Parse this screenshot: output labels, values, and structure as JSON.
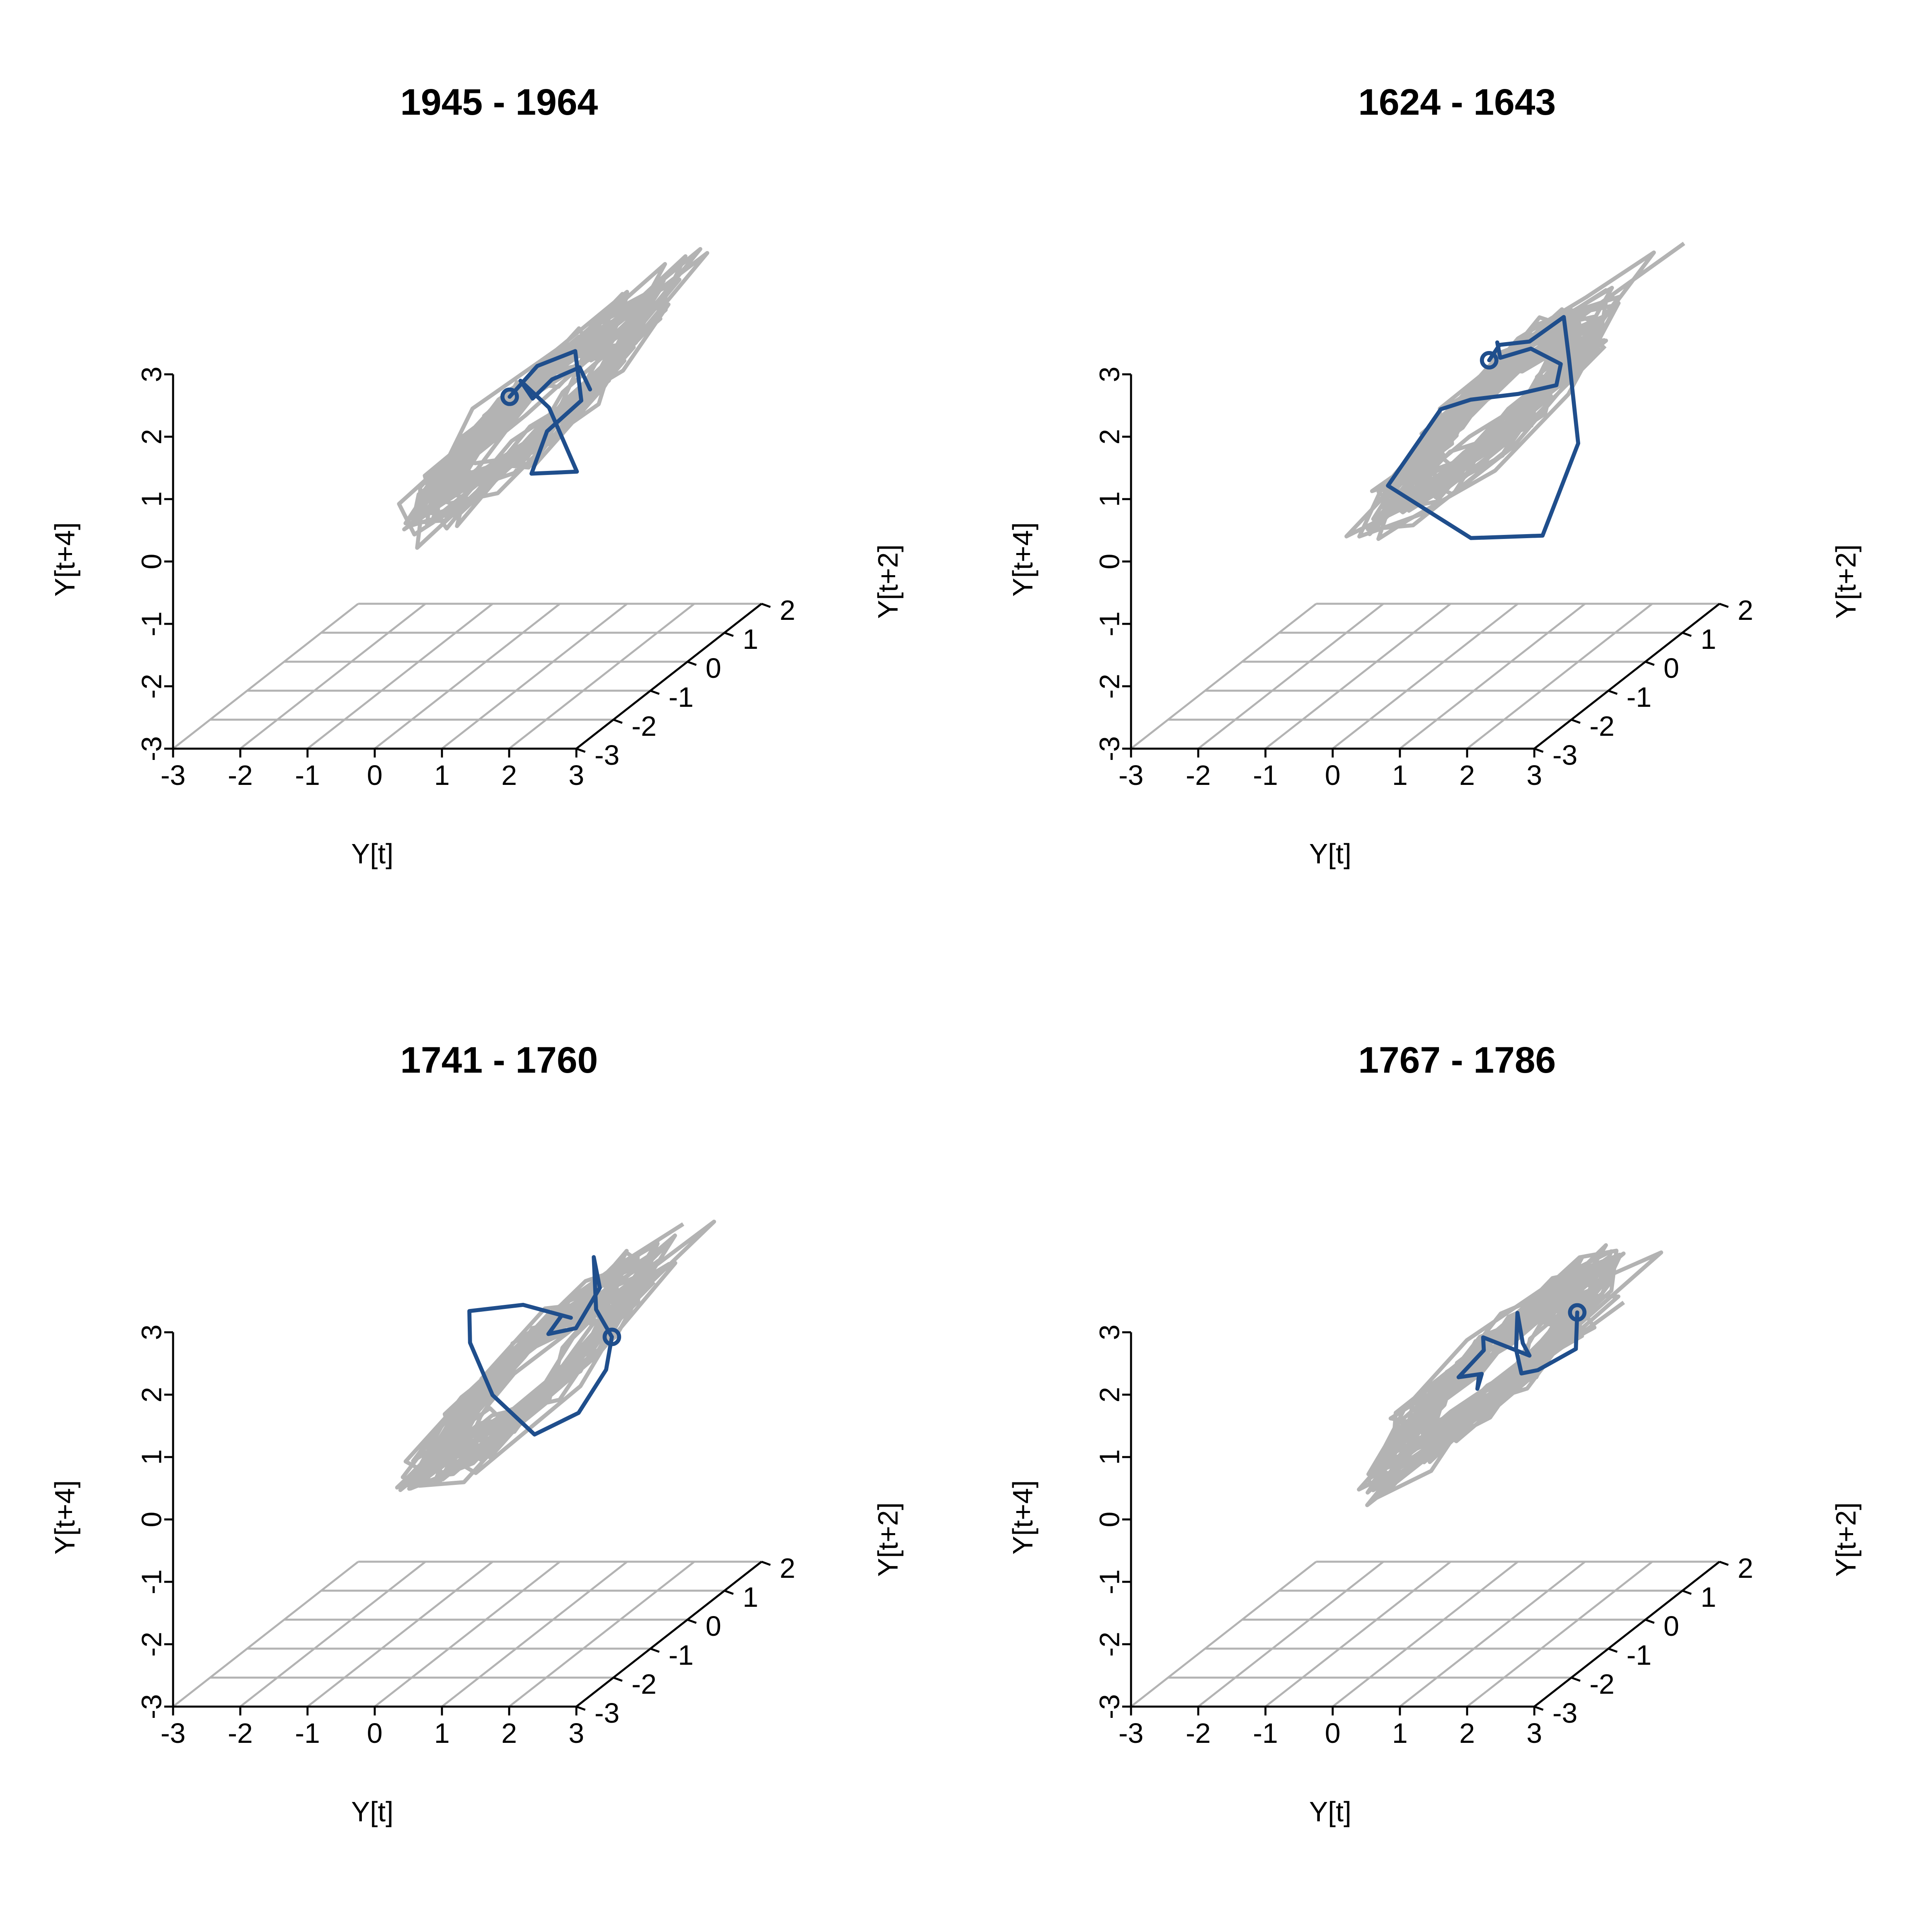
{
  "chart_data": [
    {
      "type": "3d-line",
      "title": "1945 - 1964",
      "xlabel": "Y[t]",
      "ylabel": "Y[t+2]",
      "zlabel": "Y[t+4]",
      "xlim": [
        -3,
        3
      ],
      "ylim": [
        -3,
        2
      ],
      "zlim": [
        -3,
        3
      ],
      "xticks": [
        -3,
        -2,
        -1,
        0,
        1,
        2,
        3
      ],
      "yticks": [
        -3,
        -2,
        -1,
        0,
        1,
        2
      ],
      "zticks": [
        -3,
        -2,
        -1,
        0,
        1,
        2,
        3
      ],
      "background_trajectory_color": "#b3b3b3",
      "highlight_color": "#1f4e8c",
      "highlight": [
        [
          0.3,
          0.1,
          1.2
        ],
        [
          0.6,
          0.3,
          1.6
        ],
        [
          1.0,
          0.6,
          1.7
        ],
        [
          1.2,
          0.4,
          1.0
        ],
        [
          0.8,
          0.2,
          0.6
        ],
        [
          0.9,
          -0.4,
          0.2
        ],
        [
          1.3,
          0.1,
          0.0
        ],
        [
          0.5,
          0.8,
          0.7
        ],
        [
          -0.2,
          1.3,
          0.9
        ],
        [
          0.2,
          0.9,
          0.8
        ],
        [
          0.6,
          0.7,
          1.2
        ],
        [
          0.9,
          0.9,
          1.3
        ],
        [
          1.0,
          1.0,
          0.9
        ]
      ]
    },
    {
      "type": "3d-line",
      "title": "1624 - 1643",
      "xlabel": "Y[t]",
      "ylabel": "Y[t+2]",
      "zlabel": "Y[t+4]",
      "xlim": [
        -3,
        3
      ],
      "ylim": [
        -3,
        2
      ],
      "zlim": [
        -3,
        3
      ],
      "xticks": [
        -3,
        -2,
        -1,
        0,
        1,
        2,
        3
      ],
      "yticks": [
        -3,
        -2,
        -1,
        0,
        1,
        2
      ],
      "zticks": [
        -3,
        -2,
        -1,
        0,
        1,
        2,
        3
      ],
      "background_trajectory_color": "#b3b3b3",
      "highlight_color": "#1f4e8c",
      "highlight": [
        [
          0.4,
          0.5,
          1.6
        ],
        [
          0.5,
          0.6,
          1.8
        ],
        [
          1.0,
          0.5,
          1.9
        ],
        [
          1.4,
          0.7,
          2.2
        ],
        [
          1.7,
          0.3,
          1.7
        ],
        [
          2.0,
          0.0,
          0.5
        ],
        [
          1.8,
          -0.6,
          -0.7
        ],
        [
          0.9,
          -0.9,
          -0.6
        ],
        [
          -0.5,
          -0.6,
          0.1
        ],
        [
          -0.1,
          0.1,
          1.0
        ],
        [
          0.4,
          0.0,
          1.2
        ],
        [
          1.0,
          0.2,
          1.2
        ],
        [
          1.4,
          0.5,
          1.2
        ],
        [
          1.3,
          0.8,
          1.4
        ],
        [
          0.8,
          0.9,
          1.6
        ],
        [
          0.4,
          0.8,
          1.5
        ],
        [
          0.3,
          0.9,
          1.7
        ]
      ]
    },
    {
      "type": "3d-line",
      "title": "1741 - 1760",
      "xlabel": "Y[t]",
      "ylabel": "Y[t+2]",
      "zlabel": "Y[t+4]",
      "xlim": [
        -3,
        3
      ],
      "ylim": [
        -3,
        2
      ],
      "zlim": [
        -3,
        3
      ],
      "xticks": [
        -3,
        -2,
        -1,
        0,
        1,
        2,
        3
      ],
      "yticks": [
        -3,
        -2,
        -1,
        0,
        1,
        2
      ],
      "zticks": [
        -3,
        -2,
        -1,
        0,
        1,
        2,
        3
      ],
      "background_trajectory_color": "#b3b3b3",
      "highlight_color": "#1f4e8c",
      "highlight": [
        [
          1.6,
          0.5,
          1.3
        ],
        [
          1.2,
          0.8,
          1.6
        ],
        [
          1.0,
          1.1,
          2.3
        ],
        [
          1.2,
          0.9,
          1.9
        ],
        [
          0.9,
          0.8,
          1.3
        ],
        [
          0.6,
          0.6,
          1.3
        ],
        [
          0.8,
          0.6,
          1.6
        ],
        [
          1.1,
          0.3,
          1.7
        ],
        [
          0.5,
          0.1,
          2.0
        ],
        [
          -0.3,
          0.1,
          1.9
        ],
        [
          -0.4,
          0.3,
          1.3
        ],
        [
          0.1,
          0.0,
          0.6
        ],
        [
          1.0,
          -0.5,
          0.2
        ],
        [
          1.6,
          -0.4,
          0.5
        ],
        [
          1.9,
          -0.2,
          1.1
        ],
        [
          1.6,
          0.5,
          1.3
        ]
      ]
    },
    {
      "type": "3d-line",
      "title": "1767 - 1786",
      "xlabel": "Y[t]",
      "ylabel": "Y[t+2]",
      "zlabel": "Y[t+4]",
      "xlim": [
        -3,
        3
      ],
      "ylim": [
        -3,
        2
      ],
      "zlim": [
        -3,
        3
      ],
      "xticks": [
        -3,
        -2,
        -1,
        0,
        1,
        2,
        3
      ],
      "yticks": [
        -3,
        -2,
        -1,
        0,
        1,
        2
      ],
      "zticks": [
        -3,
        -2,
        -1,
        0,
        1,
        2,
        3
      ],
      "background_trajectory_color": "#b3b3b3",
      "highlight_color": "#1f4e8c",
      "highlight": [
        [
          1.6,
          0.7,
          1.6
        ],
        [
          1.8,
          0.3,
          1.2
        ],
        [
          1.4,
          0.0,
          1.0
        ],
        [
          1.1,
          0.1,
          0.9
        ],
        [
          0.8,
          0.5,
          1.1
        ],
        [
          0.6,
          0.9,
          1.5
        ],
        [
          0.9,
          0.5,
          1.2
        ],
        [
          1.0,
          0.5,
          1.0
        ],
        [
          0.2,
          0.7,
          1.2
        ],
        [
          0.1,
          0.9,
          0.9
        ],
        [
          0.0,
          0.4,
          0.7
        ],
        [
          0.4,
          0.3,
          0.8
        ],
        [
          0.5,
          0.0,
          0.7
        ],
        [
          0.3,
          0.4,
          0.7
        ]
      ]
    }
  ]
}
